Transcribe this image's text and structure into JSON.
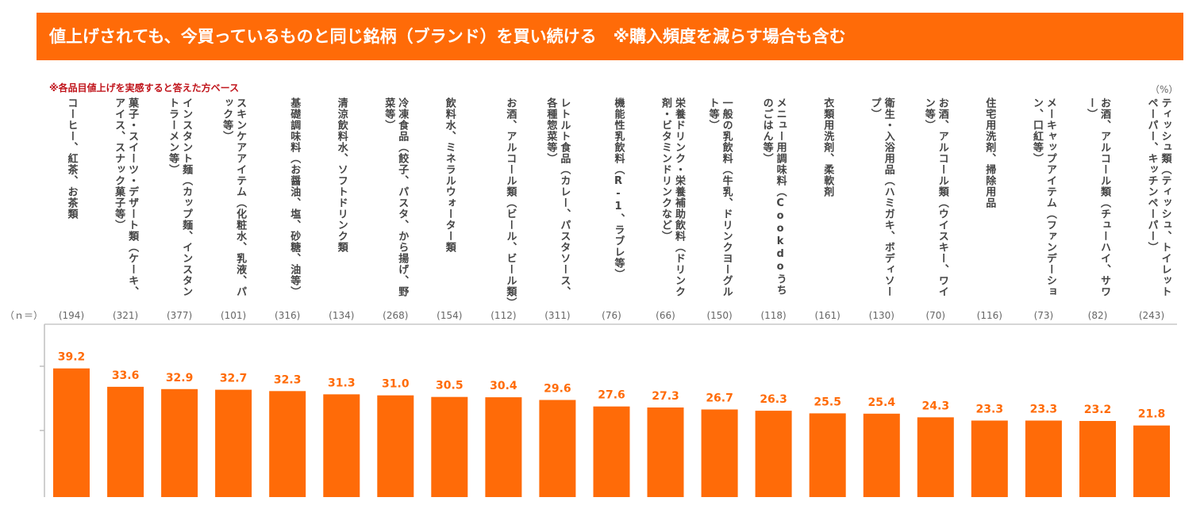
{
  "header": {
    "title": "値上げされても、今買っているものと同じ銘柄（ブランド）を買い続ける　※購入頻度を減らす場合も含む"
  },
  "note": "※各品目値上げを実感すると答えた方ベース",
  "unit_label": "（%）",
  "n_label": "（ｎ＝）",
  "colors": {
    "accent": "#ff6b08",
    "note": "#c0141b"
  },
  "chart_data": {
    "type": "bar",
    "title": "値上げされても、今買っているものと同じ銘柄（ブランド）を買い続ける　※購入頻度を減らす場合も含む",
    "ylabel": "%",
    "ylim": [
      0,
      45
    ],
    "categories": [
      "コーヒー、紅茶、お茶類",
      "菓子・スイーツ・デザート類（ケーキ、アイス、スナック菓子等）",
      "インスタント麺（カップ麺、インスタントラーメン等）",
      "スキンケアアイテム（化粧水、乳液、パック等）",
      "基礎調味料（お醤油、塩、砂糖、油等）",
      "清涼飲料水、ソフトドリンク類",
      "冷凍食品（餃子、パスタ、から揚げ、野菜等）",
      "飲料水、ミネラルウォーター類",
      "お酒、アルコール類（ビール、ビール類）",
      "レトルト食品（カレー、パスタソース、各種惣菜等）",
      "機能性乳飲料（R-1、ラブレ等）",
      "栄養ドリンク・栄養補助飲料（ドリンク剤・ビタミンドリンクなど）",
      "一般の乳飲料（牛乳、ドリンクヨーグルト等）",
      "メニュー用調味料（Cookdoうちのごはん等）",
      "衣類用洗剤、柔軟剤",
      "衛生・入浴用品（ハミガキ、ボディソープ）",
      "お酒、アルコール類（ウイスキー、ワイン等）",
      "住宅用洗剤、掃除用品",
      "メーキャップアイテム（ファンデーション、口紅等）",
      "お酒、アルコール類（チューハイ、サワー）",
      "ティッシュ類（ティッシュ、トイレットペーパー、キッチンペーパー）"
    ],
    "n": [
      "(194)",
      "(321)",
      "(377)",
      "(101)",
      "(316)",
      "(134)",
      "(268)",
      "(154)",
      "(112)",
      "(311)",
      "(76)",
      "(66)",
      "(150)",
      "(118)",
      "(161)",
      "(130)",
      "(70)",
      "(116)",
      "(73)",
      "(82)",
      "(243)"
    ],
    "values": [
      39.2,
      33.6,
      32.9,
      32.7,
      32.3,
      31.3,
      31.0,
      30.5,
      30.4,
      29.6,
      27.6,
      27.3,
      26.7,
      26.3,
      25.5,
      25.4,
      24.3,
      23.3,
      23.3,
      23.2,
      21.8
    ],
    "value_labels": [
      "39.2",
      "33.6",
      "32.9",
      "32.7",
      "32.3",
      "31.3",
      "31.0",
      "30.5",
      "30.4",
      "29.6",
      "27.6",
      "27.3",
      "26.7",
      "26.3",
      "25.5",
      "25.4",
      "24.3",
      "23.3",
      "23.3",
      "23.2",
      "21.8"
    ]
  }
}
